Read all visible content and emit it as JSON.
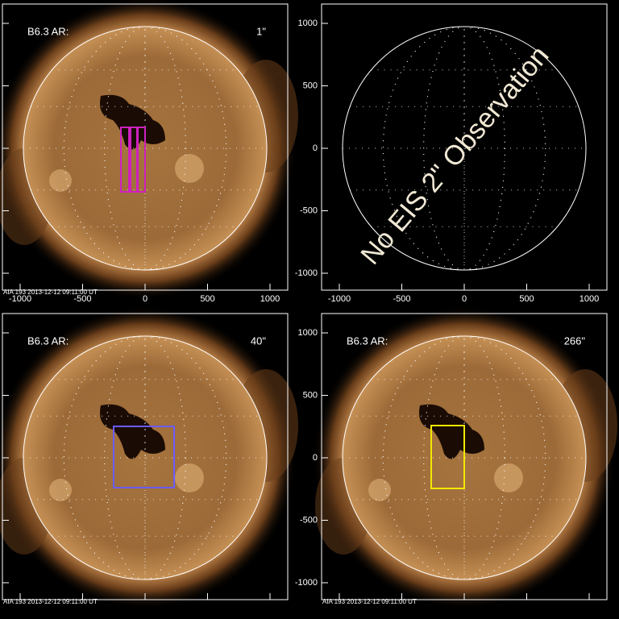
{
  "panels": [
    {
      "label": "B6.3 AR:",
      "resolution": "1\"",
      "footer": "AIA 193  2013-12-12 09:11:00 UT"
    },
    {
      "overlay": "No EIS 2\" Observation"
    },
    {
      "label": "B6.3 AR:",
      "resolution": "40\"",
      "footer": "AIA 193  2013-12-12 09:11:00 UT"
    },
    {
      "label": "B6.3 AR:",
      "resolution": "266\"",
      "footer": "AIA 193  2013-12-12 09:11:00 UT"
    }
  ],
  "axes": {
    "ticks": [
      -1000,
      -500,
      0,
      500,
      1000
    ]
  }
}
